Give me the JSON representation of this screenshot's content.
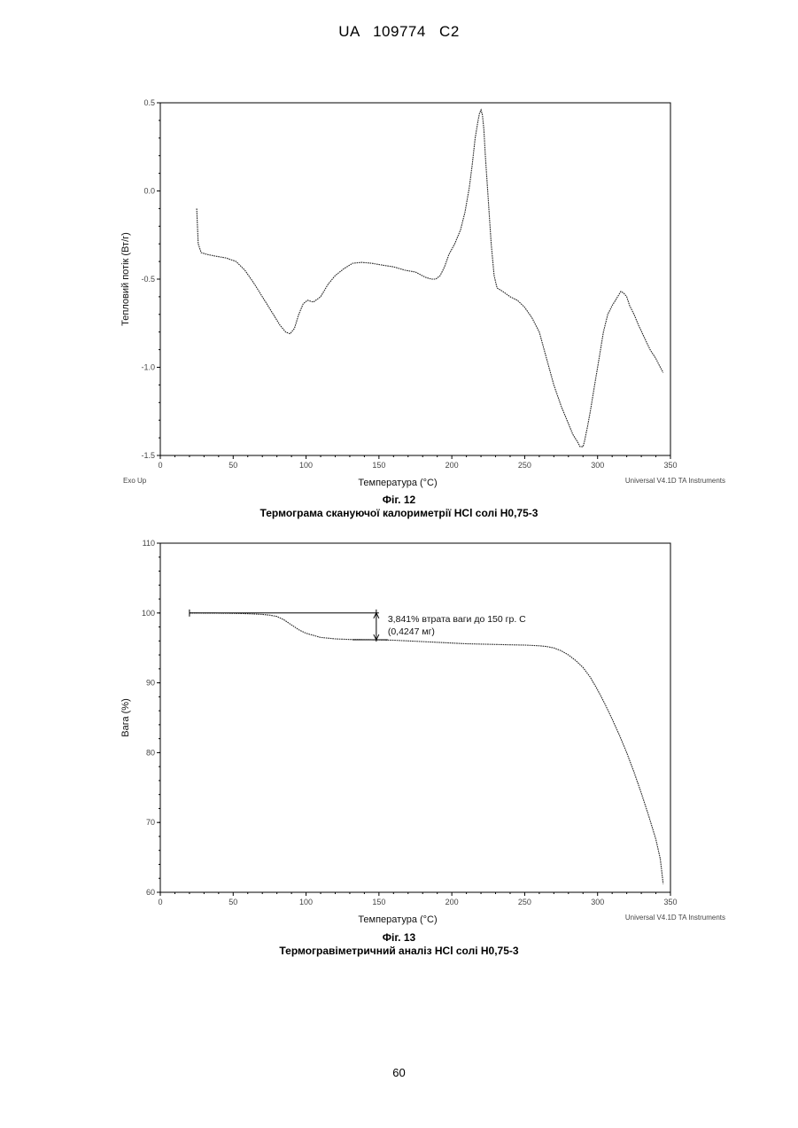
{
  "header": {
    "text": "UA   109774   C2"
  },
  "page_number": "60",
  "figures": [
    {
      "fig_label": "Фіг. 12",
      "caption": "Термограма скануючої калориметрії HCl солі H0,75-3"
    },
    {
      "fig_label": "Фіг. 13",
      "caption": "Термогравіметричний аналіз HCl солі H0,75-3"
    }
  ],
  "chart_data": [
    {
      "type": "line",
      "title": "",
      "xlabel": "Температура  (°C)",
      "ylabel": "Тепловий потік (Вт/г)",
      "xlim": [
        0,
        350
      ],
      "ylim": [
        -1.5,
        0.5
      ],
      "xticks": [
        0,
        50,
        100,
        150,
        200,
        250,
        300,
        350
      ],
      "yticks": [
        0.5,
        0.0,
        -0.5,
        -1.0,
        -1.5
      ],
      "ytick_labels": [
        "0.5",
        "0.0",
        "-0.5",
        "-1.0",
        "-1.5"
      ],
      "grid": false,
      "corner_left": "Exo Up",
      "corner_right": "Universal V4.1D TA Instruments",
      "series": [
        {
          "x": [
            25,
            26,
            28,
            32,
            38,
            45,
            52,
            58,
            64,
            70,
            76,
            82,
            86,
            89,
            92,
            95,
            98,
            101,
            105,
            110,
            115,
            120,
            126,
            132,
            138,
            145,
            152,
            160,
            168,
            175,
            182,
            186,
            189,
            192,
            195,
            198,
            202,
            206,
            209,
            212,
            214,
            216,
            218,
            219,
            220,
            221,
            222,
            223,
            225,
            227,
            229,
            231,
            235,
            240,
            245,
            250,
            255,
            260,
            265,
            270,
            275,
            280,
            283,
            286,
            288,
            290,
            291,
            293,
            295,
            298,
            301,
            304,
            307,
            310,
            313,
            316,
            318,
            320,
            322,
            325,
            328,
            332,
            336,
            340,
            343,
            345
          ],
          "y": [
            -0.1,
            -0.3,
            -0.35,
            -0.36,
            -0.37,
            -0.38,
            -0.4,
            -0.45,
            -0.52,
            -0.6,
            -0.68,
            -0.76,
            -0.8,
            -0.81,
            -0.78,
            -0.7,
            -0.64,
            -0.62,
            -0.63,
            -0.6,
            -0.53,
            -0.48,
            -0.44,
            -0.41,
            -0.405,
            -0.41,
            -0.42,
            -0.43,
            -0.45,
            -0.46,
            -0.49,
            -0.5,
            -0.5,
            -0.48,
            -0.43,
            -0.36,
            -0.3,
            -0.22,
            -0.12,
            0.02,
            0.15,
            0.3,
            0.4,
            0.44,
            0.46,
            0.43,
            0.35,
            0.2,
            -0.05,
            -0.3,
            -0.48,
            -0.55,
            -0.57,
            -0.6,
            -0.62,
            -0.66,
            -0.72,
            -0.8,
            -0.95,
            -1.1,
            -1.22,
            -1.32,
            -1.38,
            -1.42,
            -1.45,
            -1.45,
            -1.42,
            -1.34,
            -1.25,
            -1.1,
            -0.95,
            -0.8,
            -0.7,
            -0.65,
            -0.61,
            -0.57,
            -0.58,
            -0.6,
            -0.65,
            -0.7,
            -0.76,
            -0.83,
            -0.9,
            -0.95,
            -1.0,
            -1.03
          ]
        }
      ]
    },
    {
      "type": "line",
      "title": "",
      "xlabel": "Температура  (°C)",
      "ylabel": "Вага (%)",
      "xlim": [
        0,
        350
      ],
      "ylim": [
        60,
        110
      ],
      "xticks": [
        0,
        50,
        100,
        150,
        200,
        250,
        300,
        350
      ],
      "yticks": [
        110,
        100,
        90,
        80,
        70,
        60
      ],
      "grid": false,
      "corner_right": "Universal V4.1D TA Instruments",
      "annotation": {
        "text_line1": "3,841% втрата ваги до 150 гр. С",
        "text_line2": "(0,4247 мг)",
        "from_temp": 20,
        "to_temp": 150,
        "weight_top": 100,
        "weight_bottom": 96.16
      },
      "series": [
        {
          "x": [
            20,
            30,
            40,
            50,
            60,
            70,
            75,
            80,
            85,
            90,
            95,
            100,
            105,
            110,
            115,
            120,
            130,
            140,
            150,
            160,
            170,
            180,
            190,
            200,
            210,
            220,
            230,
            240,
            250,
            260,
            265,
            270,
            275,
            280,
            285,
            290,
            295,
            300,
            305,
            310,
            315,
            320,
            325,
            330,
            335,
            340,
            343,
            345
          ],
          "y": [
            100,
            99.99,
            99.97,
            99.95,
            99.9,
            99.8,
            99.7,
            99.5,
            99.0,
            98.3,
            97.6,
            97.1,
            96.8,
            96.5,
            96.4,
            96.3,
            96.2,
            96.18,
            96.16,
            96.1,
            96.0,
            95.9,
            95.8,
            95.7,
            95.6,
            95.55,
            95.5,
            95.45,
            95.4,
            95.3,
            95.2,
            95.0,
            94.6,
            94.0,
            93.2,
            92.2,
            90.8,
            89.0,
            87.0,
            84.8,
            82.5,
            80.0,
            77.2,
            74.2,
            71.0,
            67.6,
            64.8,
            61.2
          ]
        }
      ]
    }
  ]
}
